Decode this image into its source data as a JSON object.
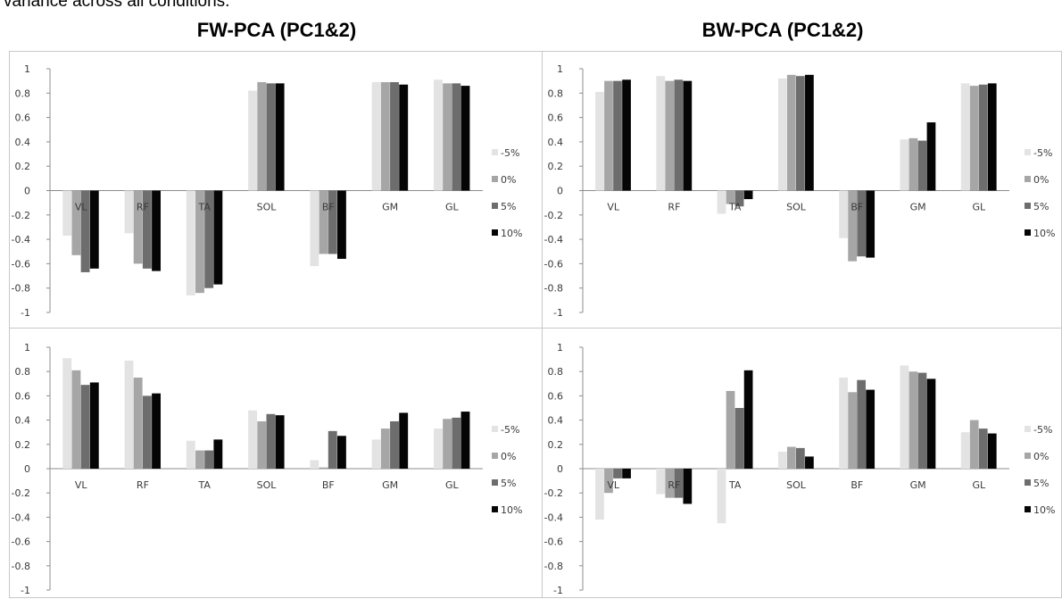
{
  "header": {
    "caption": "variance across all conditions.",
    "left_title": "FW-PCA (PC1&2)",
    "right_title": "BW-PCA (PC1&2)"
  },
  "colors": {
    "-5%": "#e3e3e3",
    "0%": "#a6a6a6",
    "5%": "#6d6d6d",
    "10%": "#050505",
    "frame": "#c8c8c8",
    "axis": "#8c8c8c"
  },
  "chart_data": [
    {
      "type": "bar",
      "position": "top-left",
      "categories": [
        "VL",
        "RF",
        "TA",
        "SOL",
        "BF",
        "GM",
        "GL"
      ],
      "ylim": [
        -1,
        1
      ],
      "yticks": [
        "1",
        "0.8",
        "0.6",
        "0.4",
        "0.2",
        "0",
        "-0.2",
        "-0.4",
        "-0.6",
        "-0.8",
        "-1"
      ],
      "legend_position": "right",
      "grid": false,
      "series": [
        {
          "name": "-5%",
          "values": [
            -0.37,
            -0.35,
            -0.86,
            0.82,
            -0.62,
            0.89,
            0.91
          ]
        },
        {
          "name": "0%",
          "values": [
            -0.53,
            -0.6,
            -0.84,
            0.89,
            -0.52,
            0.89,
            0.88
          ]
        },
        {
          "name": "5%",
          "values": [
            -0.67,
            -0.64,
            -0.8,
            0.88,
            -0.52,
            0.89,
            0.88
          ]
        },
        {
          "name": "10%",
          "values": [
            -0.64,
            -0.66,
            -0.77,
            0.88,
            -0.56,
            0.87,
            0.86
          ]
        }
      ]
    },
    {
      "type": "bar",
      "position": "top-right",
      "categories": [
        "VL",
        "RF",
        "TA",
        "SOL",
        "BF",
        "GM",
        "GL"
      ],
      "ylim": [
        -1,
        1
      ],
      "yticks": [
        "1",
        "0.8",
        "0.6",
        "0.4",
        "0.2",
        "0",
        "-0.2",
        "-0.4",
        "-0.6",
        "-0.8",
        "-1"
      ],
      "legend_position": "right",
      "grid": false,
      "series": [
        {
          "name": "-5%",
          "values": [
            0.81,
            0.94,
            -0.19,
            0.92,
            -0.39,
            0.42,
            0.88
          ]
        },
        {
          "name": "0%",
          "values": [
            0.9,
            0.9,
            -0.11,
            0.95,
            -0.58,
            0.43,
            0.86
          ]
        },
        {
          "name": "5%",
          "values": [
            0.9,
            0.91,
            -0.13,
            0.94,
            -0.54,
            0.41,
            0.87
          ]
        },
        {
          "name": "10%",
          "values": [
            0.91,
            0.9,
            -0.07,
            0.95,
            -0.55,
            0.56,
            0.88
          ]
        }
      ]
    },
    {
      "type": "bar",
      "position": "bottom-left",
      "categories": [
        "VL",
        "RF",
        "TA",
        "SOL",
        "BF",
        "GM",
        "GL"
      ],
      "ylim": [
        -1,
        1
      ],
      "yticks": [
        "1",
        "0.8",
        "0.6",
        "0.4",
        "0.2",
        "0",
        "-0.2",
        "-0.4",
        "-0.6",
        "-0.8",
        "-1"
      ],
      "legend_position": "right",
      "grid": false,
      "series": [
        {
          "name": "-5%",
          "values": [
            0.91,
            0.89,
            0.23,
            0.48,
            0.07,
            0.24,
            0.33
          ]
        },
        {
          "name": "0%",
          "values": [
            0.81,
            0.75,
            0.15,
            0.39,
            0.01,
            0.33,
            0.41
          ]
        },
        {
          "name": "5%",
          "values": [
            0.69,
            0.6,
            0.15,
            0.45,
            0.31,
            0.39,
            0.42
          ]
        },
        {
          "name": "10%",
          "values": [
            0.71,
            0.62,
            0.24,
            0.44,
            0.27,
            0.46,
            0.47
          ]
        }
      ]
    },
    {
      "type": "bar",
      "position": "bottom-right",
      "categories": [
        "VL",
        "RF",
        "TA",
        "SOL",
        "BF",
        "GM",
        "GL"
      ],
      "ylim": [
        -1,
        1
      ],
      "yticks": [
        "1",
        "0.8",
        "0.6",
        "0.4",
        "0.2",
        "0",
        "-0.2",
        "-0.4",
        "-0.6",
        "-0.8",
        "-1"
      ],
      "legend_position": "right",
      "grid": false,
      "series": [
        {
          "name": "-5%",
          "values": [
            -0.42,
            -0.21,
            -0.45,
            0.14,
            0.75,
            0.85,
            0.3
          ]
        },
        {
          "name": "0%",
          "values": [
            -0.2,
            -0.24,
            0.64,
            0.18,
            0.63,
            0.8,
            0.4
          ]
        },
        {
          "name": "5%",
          "values": [
            -0.08,
            -0.24,
            0.5,
            0.17,
            0.73,
            0.79,
            0.33
          ]
        },
        {
          "name": "10%",
          "values": [
            -0.08,
            -0.29,
            0.81,
            0.1,
            0.65,
            0.74,
            0.29
          ]
        }
      ]
    }
  ]
}
